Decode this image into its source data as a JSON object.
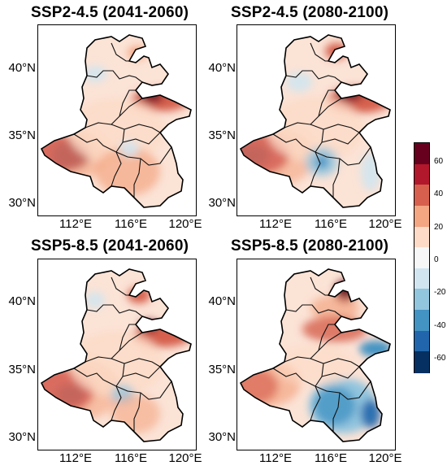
{
  "panels": [
    {
      "title": "SSP2-4.5 (2041-2060)",
      "pattern": "moderate"
    },
    {
      "title": "SSP2-4.5 (2080-2100)",
      "pattern": "moderate2"
    },
    {
      "title": "SSP5-8.5 (2041-2060)",
      "pattern": "moderate3"
    },
    {
      "title": "SSP5-8.5 (2080-2100)",
      "pattern": "strong"
    }
  ],
  "axes": {
    "y_ticks": [
      "40°N",
      "35°N",
      "30°N"
    ],
    "x_ticks": [
      "112°E",
      "116°E",
      "120°E"
    ]
  },
  "colorbar": {
    "range": [
      -70,
      70
    ],
    "ticks": [
      "60",
      "40",
      "20",
      "0",
      "-20",
      "-40",
      "-60"
    ],
    "colors": [
      "#053061",
      "#2166ac",
      "#4393c3",
      "#92c5de",
      "#d1e5f0",
      "#f7f7f7",
      "#fddbc7",
      "#f4a582",
      "#d6604d",
      "#b2182b",
      "#67001f"
    ]
  }
}
